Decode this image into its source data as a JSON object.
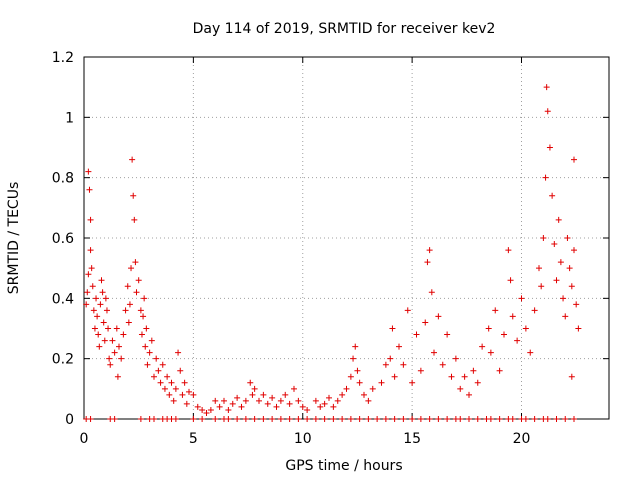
{
  "chart_data": {
    "type": "scatter",
    "title": "Day 114 of 2019, SRMTID for receiver kev2",
    "xlabel": "GPS time / hours",
    "ylabel": "SRMTID / TECUs",
    "xlim": [
      0,
      24
    ],
    "ylim": [
      0,
      1.2
    ],
    "xticks": [
      0,
      5,
      10,
      15,
      20
    ],
    "yticks": [
      0,
      0.2,
      0.4,
      0.6,
      0.8,
      1,
      1.2
    ],
    "ytick_labels": [
      "0",
      "0.2",
      "0.4",
      "0.6",
      "0.8",
      "1",
      "1.2"
    ],
    "marker": "+",
    "grid": true,
    "color": "#e00000",
    "series": [
      {
        "name": "SRMTID",
        "points": [
          [
            0.1,
            0.38
          ],
          [
            0.15,
            0.42
          ],
          [
            0.2,
            0.48
          ],
          [
            0.2,
            0.82
          ],
          [
            0.25,
            0.76
          ],
          [
            0.3,
            0.66
          ],
          [
            0.3,
            0.56
          ],
          [
            0.35,
            0.5
          ],
          [
            0.4,
            0.44
          ],
          [
            0.45,
            0.36
          ],
          [
            0.5,
            0.3
          ],
          [
            0.55,
            0.4
          ],
          [
            0.6,
            0.34
          ],
          [
            0.65,
            0.28
          ],
          [
            0.7,
            0.24
          ],
          [
            0.75,
            0.38
          ],
          [
            0.8,
            0.46
          ],
          [
            0.85,
            0.42
          ],
          [
            0.9,
            0.32
          ],
          [
            0.95,
            0.26
          ],
          [
            1.0,
            0.4
          ],
          [
            1.05,
            0.36
          ],
          [
            1.1,
            0.3
          ],
          [
            1.15,
            0.2
          ],
          [
            1.2,
            0.18
          ],
          [
            1.3,
            0.26
          ],
          [
            1.4,
            0.22
          ],
          [
            1.5,
            0.3
          ],
          [
            1.55,
            0.14
          ],
          [
            1.6,
            0.24
          ],
          [
            1.7,
            0.2
          ],
          [
            1.8,
            0.28
          ],
          [
            1.9,
            0.36
          ],
          [
            2.0,
            0.44
          ],
          [
            2.05,
            0.32
          ],
          [
            2.1,
            0.38
          ],
          [
            2.15,
            0.5
          ],
          [
            2.2,
            0.86
          ],
          [
            2.25,
            0.74
          ],
          [
            2.3,
            0.66
          ],
          [
            2.35,
            0.52
          ],
          [
            2.4,
            0.42
          ],
          [
            2.5,
            0.46
          ],
          [
            2.6,
            0.36
          ],
          [
            2.65,
            0.28
          ],
          [
            2.7,
            0.34
          ],
          [
            2.75,
            0.4
          ],
          [
            2.8,
            0.24
          ],
          [
            2.85,
            0.3
          ],
          [
            2.9,
            0.18
          ],
          [
            3.0,
            0.22
          ],
          [
            3.1,
            0.26
          ],
          [
            3.2,
            0.14
          ],
          [
            3.3,
            0.2
          ],
          [
            3.4,
            0.16
          ],
          [
            3.5,
            0.12
          ],
          [
            3.6,
            0.18
          ],
          [
            3.7,
            0.1
          ],
          [
            3.8,
            0.14
          ],
          [
            3.9,
            0.08
          ],
          [
            4.0,
            0.12
          ],
          [
            4.1,
            0.06
          ],
          [
            4.2,
            0.1
          ],
          [
            4.3,
            0.22
          ],
          [
            4.4,
            0.16
          ],
          [
            4.5,
            0.08
          ],
          [
            4.6,
            0.12
          ],
          [
            4.7,
            0.05
          ],
          [
            4.8,
            0.09
          ],
          [
            5.0,
            0.08
          ],
          [
            5.2,
            0.04
          ],
          [
            5.4,
            0.03
          ],
          [
            5.6,
            0.02
          ],
          [
            5.8,
            0.03
          ],
          [
            6.0,
            0.06
          ],
          [
            6.2,
            0.04
          ],
          [
            6.4,
            0.06
          ],
          [
            6.6,
            0.03
          ],
          [
            6.8,
            0.05
          ],
          [
            7.0,
            0.07
          ],
          [
            7.2,
            0.04
          ],
          [
            7.4,
            0.06
          ],
          [
            7.6,
            0.12
          ],
          [
            7.7,
            0.08
          ],
          [
            7.8,
            0.1
          ],
          [
            8.0,
            0.06
          ],
          [
            8.2,
            0.08
          ],
          [
            8.4,
            0.05
          ],
          [
            8.6,
            0.07
          ],
          [
            8.8,
            0.04
          ],
          [
            9.0,
            0.06
          ],
          [
            9.2,
            0.08
          ],
          [
            9.4,
            0.05
          ],
          [
            9.6,
            0.1
          ],
          [
            9.8,
            0.06
          ],
          [
            10.0,
            0.04
          ],
          [
            10.2,
            0.03
          ],
          [
            10.6,
            0.06
          ],
          [
            10.8,
            0.04
          ],
          [
            11.0,
            0.05
          ],
          [
            11.2,
            0.07
          ],
          [
            11.4,
            0.04
          ],
          [
            11.6,
            0.06
          ],
          [
            11.8,
            0.08
          ],
          [
            12.0,
            0.1
          ],
          [
            12.2,
            0.14
          ],
          [
            12.3,
            0.2
          ],
          [
            12.4,
            0.24
          ],
          [
            12.5,
            0.16
          ],
          [
            12.6,
            0.12
          ],
          [
            12.8,
            0.08
          ],
          [
            13.0,
            0.06
          ],
          [
            13.2,
            0.1
          ],
          [
            13.6,
            0.12
          ],
          [
            13.8,
            0.18
          ],
          [
            14.0,
            0.2
          ],
          [
            14.1,
            0.3
          ],
          [
            14.2,
            0.14
          ],
          [
            14.4,
            0.24
          ],
          [
            14.6,
            0.18
          ],
          [
            14.8,
            0.36
          ],
          [
            15.0,
            0.12
          ],
          [
            15.2,
            0.28
          ],
          [
            15.4,
            0.16
          ],
          [
            15.6,
            0.32
          ],
          [
            15.7,
            0.52
          ],
          [
            15.8,
            0.56
          ],
          [
            15.9,
            0.42
          ],
          [
            16.0,
            0.22
          ],
          [
            16.2,
            0.34
          ],
          [
            16.4,
            0.18
          ],
          [
            16.6,
            0.28
          ],
          [
            16.8,
            0.14
          ],
          [
            17.0,
            0.2
          ],
          [
            17.2,
            0.1
          ],
          [
            17.4,
            0.14
          ],
          [
            17.6,
            0.08
          ],
          [
            17.8,
            0.16
          ],
          [
            18.0,
            0.12
          ],
          [
            18.2,
            0.24
          ],
          [
            18.5,
            0.3
          ],
          [
            18.6,
            0.22
          ],
          [
            18.8,
            0.36
          ],
          [
            19.0,
            0.16
          ],
          [
            19.2,
            0.28
          ],
          [
            19.4,
            0.56
          ],
          [
            19.5,
            0.46
          ],
          [
            19.6,
            0.34
          ],
          [
            19.8,
            0.26
          ],
          [
            20.0,
            0.4
          ],
          [
            20.2,
            0.3
          ],
          [
            20.4,
            0.22
          ],
          [
            20.6,
            0.36
          ],
          [
            20.8,
            0.5
          ],
          [
            20.9,
            0.44
          ],
          [
            21.0,
            0.6
          ],
          [
            21.1,
            0.8
          ],
          [
            21.15,
            1.1
          ],
          [
            21.2,
            1.02
          ],
          [
            21.3,
            0.9
          ],
          [
            21.4,
            0.74
          ],
          [
            21.5,
            0.58
          ],
          [
            21.6,
            0.46
          ],
          [
            21.7,
            0.66
          ],
          [
            21.8,
            0.52
          ],
          [
            21.9,
            0.4
          ],
          [
            22.0,
            0.34
          ],
          [
            22.1,
            0.6
          ],
          [
            22.2,
            0.5
          ],
          [
            22.3,
            0.44
          ],
          [
            22.4,
            0.56
          ],
          [
            22.5,
            0.38
          ],
          [
            22.6,
            0.3
          ],
          [
            22.4,
            0.86
          ],
          [
            22.3,
            0.14
          ]
        ]
      }
    ],
    "zero_markers_x": [
      0.1,
      0.3,
      1.2,
      1.4,
      2.6,
      3.0,
      3.2,
      3.6,
      3.8,
      4.0,
      4.2,
      5.0,
      5.4,
      6.0,
      6.4,
      6.6,
      7.0,
      7.4,
      7.8,
      8.2,
      8.6,
      9.0,
      9.4,
      9.8,
      10.2,
      10.6,
      11.0,
      11.4,
      11.8,
      12.2,
      12.6,
      13.0,
      13.4,
      13.8,
      14.2,
      14.6,
      15.0,
      15.4,
      15.8,
      16.2,
      16.6,
      17.0,
      17.2,
      17.6,
      18.0,
      18.4,
      18.6,
      19.0,
      19.4,
      19.6,
      20.0,
      20.2,
      20.6,
      21.0,
      21.2,
      21.6,
      22.0,
      22.4
    ]
  }
}
